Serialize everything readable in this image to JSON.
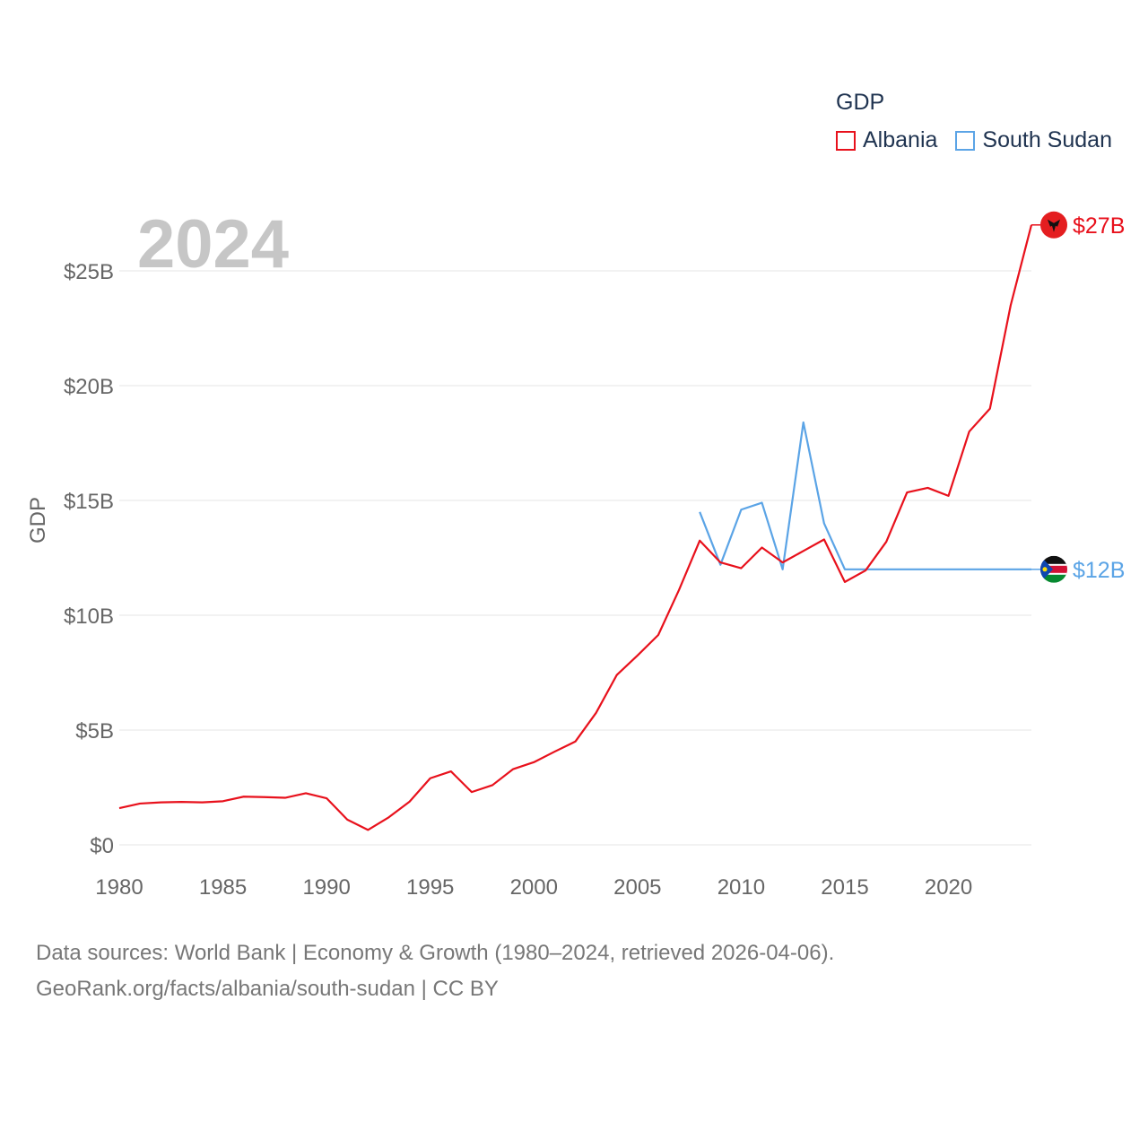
{
  "legend": {
    "title": "GDP",
    "items": [
      {
        "label": "Albania",
        "color": "#e8111c"
      },
      {
        "label": "South Sudan",
        "color": "#5ba4e6"
      }
    ]
  },
  "footer": {
    "line1": "Data sources: World Bank | Economy & Growth (1980–2024, retrieved 2026-04-06).",
    "line2": "GeoRank.org/facts/albania/south-sudan | CC BY"
  },
  "chart_data": {
    "type": "line",
    "title": "GDP",
    "year_label": "2024",
    "ylabel": "GDP",
    "xlabel": "",
    "xlim": [
      1980,
      2024
    ],
    "ylim": [
      0,
      28
    ],
    "x_ticks": [
      1980,
      1985,
      1990,
      1995,
      2000,
      2005,
      2010,
      2015,
      2020
    ],
    "x_tick_labels": [
      "1980",
      "1985",
      "1990",
      "1995",
      "2000",
      "2005",
      "2010",
      "2015",
      "2020"
    ],
    "y_ticks": [
      0,
      5,
      10,
      15,
      20,
      25
    ],
    "y_tick_labels": [
      "$0",
      "$5B",
      "$10B",
      "$15B",
      "$20B",
      "$25B"
    ],
    "grid": true,
    "legend_position": "top-right",
    "series": [
      {
        "name": "Albania",
        "color": "#e8111c",
        "end_label": "$27B",
        "x": [
          1980,
          1981,
          1982,
          1983,
          1984,
          1985,
          1986,
          1987,
          1988,
          1989,
          1990,
          1991,
          1992,
          1993,
          1994,
          1995,
          1996,
          1997,
          1998,
          1999,
          2000,
          2001,
          2002,
          2003,
          2004,
          2005,
          2006,
          2007,
          2008,
          2009,
          2010,
          2011,
          2012,
          2013,
          2014,
          2015,
          2016,
          2017,
          2018,
          2019,
          2020,
          2021,
          2022,
          2023,
          2024
        ],
        "values": [
          1.6,
          1.8,
          1.85,
          1.87,
          1.85,
          1.9,
          2.1,
          2.08,
          2.05,
          2.25,
          2.03,
          1.1,
          0.65,
          1.2,
          1.88,
          2.9,
          3.2,
          2.3,
          2.6,
          3.3,
          3.6,
          4.06,
          4.5,
          5.75,
          7.4,
          8.25,
          9.14,
          11.1,
          13.25,
          12.3,
          12.05,
          12.95,
          12.3,
          12.8,
          13.3,
          11.45,
          11.95,
          13.2,
          15.35,
          15.55,
          15.2,
          18.0,
          19.0,
          23.5,
          27.0
        ]
      },
      {
        "name": "South Sudan",
        "color": "#5ba4e6",
        "end_label": "$12B",
        "x": [
          2008,
          2009,
          2010,
          2011,
          2012,
          2013,
          2014,
          2015,
          2016,
          2017,
          2018,
          2019,
          2020,
          2021,
          2022,
          2023,
          2024
        ],
        "values": [
          14.5,
          12.2,
          14.6,
          14.9,
          12.0,
          18.4,
          14.0,
          12.0,
          12.0,
          12.0,
          12.0,
          12.0,
          12.0,
          12.0,
          12.0,
          12.0,
          12.0
        ]
      }
    ]
  }
}
